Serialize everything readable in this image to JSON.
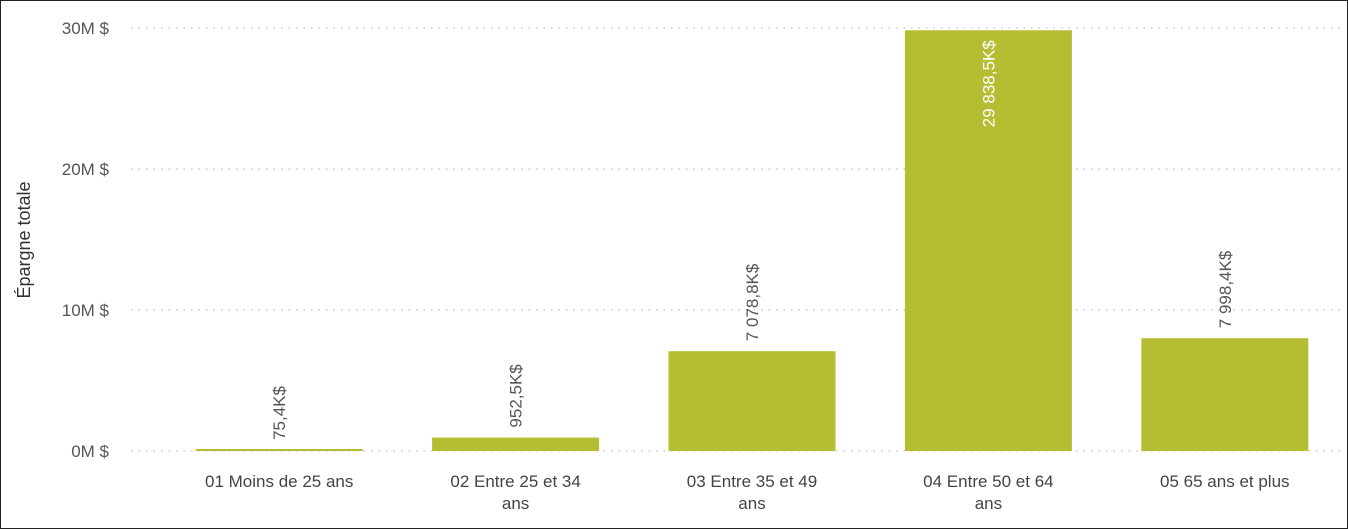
{
  "chart_data": {
    "type": "bar",
    "categories": [
      "01 Moins de 25 ans",
      "02 Entre 25 et 34 ans",
      "03 Entre 35 et 49 ans",
      "04 Entre 50 et 64 ans",
      "05 65 ans et plus"
    ],
    "values": [
      75.4,
      952.5,
      7078.8,
      29838.5,
      7998.4
    ],
    "value_unit": "K$",
    "data_labels": [
      "75,4K$",
      "952,5K$",
      "7 078,8K$",
      "29 838,5K$",
      "7 998,4K$"
    ],
    "title": "",
    "xlabel": "",
    "ylabel": "Épargne totale",
    "ylim": [
      0,
      30000
    ],
    "y_ticks": [
      0,
      10000,
      20000,
      30000
    ],
    "y_tick_labels": [
      "0M $",
      "10M $",
      "20M $",
      "30M $"
    ],
    "grid": true,
    "legend": "none",
    "bar_color": "#b5bd32",
    "label_inside_color": "#ffffff",
    "label_outside_color": "#555555"
  }
}
